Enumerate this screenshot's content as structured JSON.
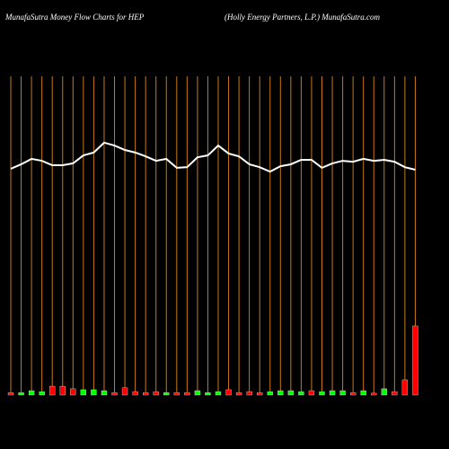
{
  "chart_data": {
    "type": "money-flow",
    "title": "MunafaSutra  Money Flow  Charts for HEP",
    "subtitle": "(Holly Energy Partners,  L.P.) MunafaSutra.com",
    "categories": [
      null,
      null,
      null,
      null,
      null,
      null,
      null,
      null,
      null,
      null,
      null,
      null,
      null,
      null,
      null,
      null,
      null,
      null,
      null,
      null,
      null,
      null,
      null,
      null,
      null,
      null,
      null,
      null,
      null,
      null,
      null,
      null,
      null,
      null,
      null,
      null,
      null,
      null,
      null,
      null
    ],
    "ylim": [
      0,
      100
    ],
    "grid_color": "#c87814",
    "series": [
      {
        "type": "line",
        "color": "#ffffff",
        "values": [
          71.0,
          72.4,
          74.1,
          73.5,
          72.1,
          72.1,
          72.7,
          75.2,
          76.1,
          79.2,
          78.3,
          76.9,
          76.1,
          74.9,
          73.5,
          74.1,
          71.3,
          71.5,
          74.6,
          75.2,
          78.3,
          75.8,
          74.9,
          72.4,
          71.5,
          70.1,
          71.8,
          72.4,
          73.8,
          73.8,
          71.3,
          72.7,
          73.5,
          73.2,
          74.1,
          73.5,
          73.8,
          73.2,
          71.5,
          70.7
        ]
      },
      {
        "type": "bar",
        "colors": [
          "#ff0000",
          "#00ff00",
          "#00ff00",
          "#00ff00",
          "#ff0000",
          "#ff0000",
          "#ff0000",
          "#00ff00",
          "#00ff00",
          "#00ff00",
          "#ff0000",
          "#ff0000",
          "#ff0000",
          "#ff0000",
          "#ff0000",
          "#00ff00",
          "#ff0000",
          "#ff0000",
          "#00ff00",
          "#00ff00",
          "#00ff00",
          "#ff0000",
          "#ff0000",
          "#ff0000",
          "#ff0000",
          "#00ff00",
          "#00ff00",
          "#00ff00",
          "#00ff00",
          "#ff0000",
          "#00ff00",
          "#00ff00",
          "#00ff00",
          "#ff0000",
          "#00ff00",
          "#ff0000",
          "#00ff00",
          "#ff0000",
          "#ff0000",
          "#ff0000"
        ],
        "values": [
          0.8,
          0.8,
          1.4,
          1.1,
          2.8,
          2.8,
          2.0,
          1.7,
          1.7,
          1.4,
          0.8,
          2.3,
          1.1,
          0.8,
          1.1,
          0.8,
          0.8,
          0.8,
          1.4,
          0.8,
          1.1,
          1.7,
          0.8,
          1.1,
          0.8,
          1.1,
          1.4,
          1.4,
          1.1,
          1.4,
          1.1,
          1.4,
          1.4,
          0.8,
          1.4,
          0.6,
          2.0,
          1.1,
          4.8,
          21.7
        ]
      }
    ]
  }
}
